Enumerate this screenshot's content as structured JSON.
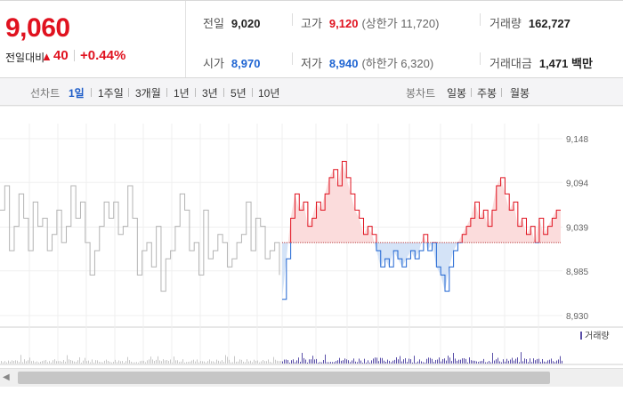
{
  "summary": {
    "current_price": "9,060",
    "change_label": "전일대비",
    "change_symbol": "▲",
    "change_value": "40",
    "change_pct": "+0.44%"
  },
  "stats": {
    "prev_close": {
      "label": "전일",
      "value": "9,020"
    },
    "open": {
      "label": "시가",
      "value": "8,970"
    },
    "high": {
      "label": "고가",
      "value": "9,120",
      "sub": "(상한가 11,720)"
    },
    "low": {
      "label": "저가",
      "value": "8,940",
      "sub": "(하한가 6,320)"
    },
    "volume": {
      "label": "거래량",
      "value": "162,727"
    },
    "trade_value": {
      "label": "거래대금",
      "value": "1,471 백만"
    }
  },
  "toolbar": {
    "line_chart_label": "선차트",
    "line_periods": [
      "1일",
      "1주일",
      "3개월",
      "1년",
      "3년",
      "5년",
      "10년"
    ],
    "active_period": "1일",
    "candle_chart_label": "봉차트",
    "candle_periods": [
      "일봉",
      "주봉",
      "월봉"
    ]
  },
  "colors": {
    "up": "#e0121f",
    "down": "#1e64d2",
    "prev_day_line": "#b4b4b4",
    "up_fill": "#fbdcdc",
    "down_fill": "#d4e3f7",
    "volume_bar": "#5a4fa8"
  },
  "chart_data": {
    "type": "line",
    "y_ticks": [
      "9,148",
      "9,094",
      "9,039",
      "8,985",
      "8,930"
    ],
    "ylim": [
      8930,
      9148
    ],
    "reference_price": 9020,
    "grid": true,
    "volume_legend": "거래량",
    "series": [
      {
        "values": [
          9060,
          9090,
          9010,
          9040,
          9080,
          9050,
          9010,
          9070,
          9040,
          9050,
          9010,
          9030,
          9060,
          9020,
          9040,
          9090,
          9050,
          9070,
          9020,
          8980,
          9010,
          9040,
          9070,
          9050,
          9070,
          9030,
          9040,
          9090,
          9050,
          8980,
          9010,
          9020,
          8990,
          9040,
          8960,
          9000,
          9010,
          9040,
          9080,
          9060,
          9010,
          9020,
          8980,
          9060,
          9000,
          9010,
          9030,
          9020,
          8990,
          9000,
          9020,
          9030,
          9070,
          9010,
          9050,
          9040,
          9000,
          9010,
          9020,
          8980
        ]
      },
      {
        "values": [
          8950,
          9000,
          9050,
          9080,
          9060,
          9070,
          9040,
          9050,
          9070,
          9060,
          9080,
          9100,
          9110,
          9090,
          9120,
          9100,
          9080,
          9060,
          9050,
          9030,
          9040,
          9030,
          9010,
          8990,
          9000,
          8990,
          9010,
          9000,
          8990,
          9000,
          9010,
          9000,
          9010,
          9030,
          9010,
          9020,
          8990,
          8980,
          8960,
          8990,
          9010,
          9020,
          9030,
          9040,
          9050,
          9070,
          9050,
          9060,
          9040,
          9060,
          9090,
          9100,
          9080,
          9060,
          9070,
          9040,
          9050,
          9030,
          9040,
          9020,
          9050,
          9030,
          9040,
          9050,
          9060,
          9060
        ]
      }
    ]
  }
}
